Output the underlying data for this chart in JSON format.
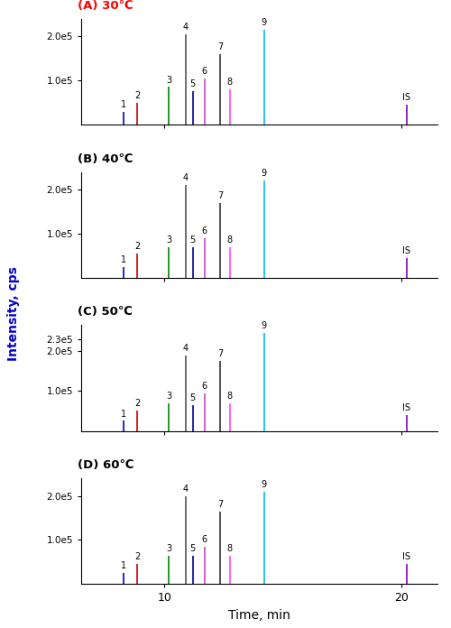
{
  "panels": [
    {
      "label": "(A) 30℃",
      "label_color": "#ff0000",
      "yticks": [
        100000.0,
        200000.0
      ],
      "ytick_labels": [
        "1.0e5",
        "2.0e5"
      ],
      "ylim": [
        0,
        240000.0
      ],
      "peaks": [
        {
          "name": "1",
          "x": 8.3,
          "height": 28000.0,
          "color": "#0000cc"
        },
        {
          "name": "2",
          "x": 8.85,
          "height": 50000.0,
          "color": "#cc0000"
        },
        {
          "name": "3",
          "x": 10.2,
          "height": 85000.0,
          "color": "#008800"
        },
        {
          "name": "4",
          "x": 10.9,
          "height": 205000.0,
          "color": "#555555"
        },
        {
          "name": "5",
          "x": 11.2,
          "height": 75000.0,
          "color": "#000099"
        },
        {
          "name": "6",
          "x": 11.7,
          "height": 105000.0,
          "color": "#cc44cc"
        },
        {
          "name": "7",
          "x": 12.35,
          "height": 160000.0,
          "color": "#333333"
        },
        {
          "name": "8",
          "x": 12.75,
          "height": 80000.0,
          "color": "#ff44ff"
        },
        {
          "name": "9",
          "x": 14.2,
          "height": 215000.0,
          "color": "#00bbee"
        },
        {
          "name": "IS",
          "x": 20.2,
          "height": 45000.0,
          "color": "#8800bb"
        }
      ]
    },
    {
      "label": "(B) 40℃",
      "label_color": "#000000",
      "yticks": [
        100000.0,
        200000.0
      ],
      "ytick_labels": [
        "1.0e5",
        "2.0e5"
      ],
      "ylim": [
        0,
        240000.0
      ],
      "peaks": [
        {
          "name": "1",
          "x": 8.3,
          "height": 25000.0,
          "color": "#0000cc"
        },
        {
          "name": "2",
          "x": 8.85,
          "height": 55000.0,
          "color": "#cc0000"
        },
        {
          "name": "3",
          "x": 10.2,
          "height": 70000.0,
          "color": "#008800"
        },
        {
          "name": "4",
          "x": 10.9,
          "height": 210000.0,
          "color": "#555555"
        },
        {
          "name": "5",
          "x": 11.2,
          "height": 70000.0,
          "color": "#000099"
        },
        {
          "name": "6",
          "x": 11.7,
          "height": 90000.0,
          "color": "#cc44cc"
        },
        {
          "name": "7",
          "x": 12.35,
          "height": 170000.0,
          "color": "#333333"
        },
        {
          "name": "8",
          "x": 12.75,
          "height": 70000.0,
          "color": "#ff44ff"
        },
        {
          "name": "9",
          "x": 14.2,
          "height": 220000.0,
          "color": "#00bbee"
        },
        {
          "name": "IS",
          "x": 20.2,
          "height": 45000.0,
          "color": "#8800bb"
        }
      ]
    },
    {
      "label": "(C) 50℃",
      "label_color": "#000000",
      "yticks": [
        100000.0,
        200000.0,
        230000.0
      ],
      "ytick_labels": [
        "1.0e5",
        "2.0e5",
        "2.3e5"
      ],
      "ylim": [
        0,
        265000.0
      ],
      "peaks": [
        {
          "name": "1",
          "x": 8.3,
          "height": 25000.0,
          "color": "#0000cc"
        },
        {
          "name": "2",
          "x": 8.85,
          "height": 50000.0,
          "color": "#cc0000"
        },
        {
          "name": "3",
          "x": 10.2,
          "height": 70000.0,
          "color": "#008800"
        },
        {
          "name": "4",
          "x": 10.9,
          "height": 190000.0,
          "color": "#555555"
        },
        {
          "name": "5",
          "x": 11.2,
          "height": 65000.0,
          "color": "#000099"
        },
        {
          "name": "6",
          "x": 11.7,
          "height": 95000.0,
          "color": "#cc44cc"
        },
        {
          "name": "7",
          "x": 12.35,
          "height": 175000.0,
          "color": "#333333"
        },
        {
          "name": "8",
          "x": 12.75,
          "height": 70000.0,
          "color": "#ff44ff"
        },
        {
          "name": "9",
          "x": 14.2,
          "height": 245000.0,
          "color": "#00bbee"
        },
        {
          "name": "IS",
          "x": 20.2,
          "height": 40000.0,
          "color": "#8800bb"
        }
      ]
    },
    {
      "label": "(D) 60℃",
      "label_color": "#000000",
      "yticks": [
        100000.0,
        200000.0
      ],
      "ytick_labels": [
        "1.0e5",
        "2.0e5"
      ],
      "ylim": [
        0,
        240000.0
      ],
      "peaks": [
        {
          "name": "1",
          "x": 8.3,
          "height": 25000.0,
          "color": "#0000cc"
        },
        {
          "name": "2",
          "x": 8.85,
          "height": 45000.0,
          "color": "#cc0000"
        },
        {
          "name": "3",
          "x": 10.2,
          "height": 65000.0,
          "color": "#008800"
        },
        {
          "name": "4",
          "x": 10.9,
          "height": 200000.0,
          "color": "#555555"
        },
        {
          "name": "5",
          "x": 11.2,
          "height": 65000.0,
          "color": "#000099"
        },
        {
          "name": "6",
          "x": 11.7,
          "height": 85000.0,
          "color": "#cc44cc"
        },
        {
          "name": "7",
          "x": 12.35,
          "height": 165000.0,
          "color": "#333333"
        },
        {
          "name": "8",
          "x": 12.75,
          "height": 65000.0,
          "color": "#ff44ff"
        },
        {
          "name": "9",
          "x": 14.2,
          "height": 210000.0,
          "color": "#00bbee"
        },
        {
          "name": "IS",
          "x": 20.2,
          "height": 45000.0,
          "color": "#8800bb"
        }
      ]
    }
  ],
  "xlim": [
    6.5,
    21.5
  ],
  "xticks": [
    10,
    20
  ],
  "xlabel": "Time, min",
  "ylabel": "Intensity, cps",
  "ylabel_color": "#0000cc",
  "background_color": "#ffffff"
}
